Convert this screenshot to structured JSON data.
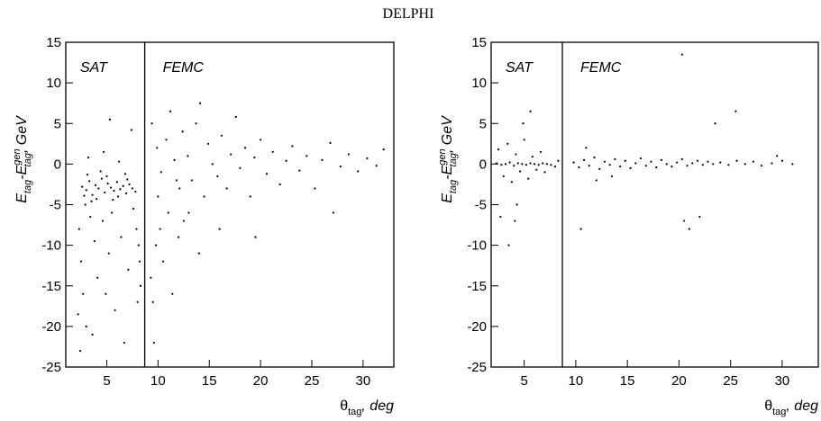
{
  "title": "DELPHI",
  "chart_data": [
    {
      "type": "scatter",
      "annotations": [
        "SAT",
        "FEMC"
      ],
      "boundary": 8.7,
      "xlabel": [
        "θ",
        "tag",
        ", deg"
      ],
      "ylabel": [
        "E",
        "tag",
        "-E",
        "gen",
        "tag",
        ", GeV"
      ],
      "xlim": [
        1,
        33
      ],
      "xticks": [
        5,
        10,
        15,
        20,
        25,
        30
      ],
      "ylim": [
        -25,
        15
      ],
      "yticks": [
        -25,
        -20,
        -15,
        -10,
        -5,
        0,
        5,
        10,
        15
      ],
      "color": "#000000",
      "x": [
        2.6,
        3.0,
        3.3,
        3.6,
        3.9,
        4.2,
        4.5,
        4.8,
        5.1,
        5.4,
        5.7,
        6.0,
        6.3,
        6.6,
        6.9,
        7.2,
        7.5,
        7.8,
        3.1,
        4.0,
        5.0,
        6.1,
        7.0,
        3.5,
        5.6,
        4.4,
        6.8,
        2.8,
        2.3,
        2.5,
        2.7,
        3.0,
        2.4,
        3.4,
        3.8,
        4.1,
        4.6,
        5.2,
        5.8,
        6.4,
        7.1,
        7.6,
        7.9,
        8.1,
        8.2,
        8.3,
        8.0,
        2.2,
        3.6,
        4.9,
        6.7,
        2.9,
        5.5,
        3.2,
        4.7,
        6.2,
        7.4,
        5.3,
        9.3,
        9.5,
        9.8,
        9.6,
        10.2,
        10.5,
        11.0,
        11.4,
        12.0,
        12.5,
        9.4,
        9.9,
        10.3,
        10.8,
        11.2,
        11.6,
        12.1,
        12.4,
        12.9,
        13.3,
        13.7,
        14.1,
        14.5,
        14.9,
        15.3,
        15.8,
        16.2,
        16.7,
        17.1,
        17.6,
        18.0,
        18.5,
        19.0,
        19.4,
        20.0,
        20.6,
        21.2,
        21.9,
        22.5,
        23.1,
        23.8,
        24.5,
        25.3,
        26.0,
        26.8,
        27.1,
        27.8,
        28.6,
        29.5,
        30.4,
        31.3,
        32.0,
        10.0,
        11.8,
        13.0,
        14.0,
        16.0,
        19.5
      ],
      "y": [
        -2.8,
        -3.2,
        -2.1,
        -3.8,
        -2.6,
        -3.0,
        -1.8,
        -3.5,
        -2.4,
        -2.9,
        -3.3,
        -2.2,
        -3.1,
        -2.7,
        -3.6,
        -2.5,
        -3.0,
        -3.4,
        -1.3,
        -4.3,
        -1.5,
        -4.0,
        -1.9,
        -4.6,
        -4.4,
        -0.9,
        -1.2,
        -3.9,
        -8,
        -12,
        -16,
        -20,
        -23,
        -6.5,
        -9.5,
        -14,
        -7,
        -11,
        -18,
        -9,
        -13,
        -5.5,
        -8,
        -10,
        -12,
        -15,
        -17,
        -18.5,
        -21,
        -16,
        -22,
        -5,
        -6,
        0.8,
        1.5,
        0.3,
        4.2,
        5.5,
        -14,
        -17,
        -10,
        -22,
        -8,
        -12,
        -6,
        -16,
        -9,
        -7,
        5,
        2,
        -1,
        3,
        6.5,
        0.5,
        -3,
        4,
        1,
        -2,
        5,
        7.5,
        -4,
        2.5,
        0,
        -1.5,
        3.5,
        -3,
        1.2,
        5.8,
        -0.5,
        2,
        -4,
        0.8,
        3,
        -1.2,
        1.5,
        -2.5,
        0.4,
        2.2,
        -0.8,
        1,
        -3,
        0.5,
        2.6,
        -6,
        -0.3,
        1.2,
        -0.9,
        0.7,
        -0.2,
        1.8,
        -4,
        -2,
        -6,
        -11,
        -8,
        -9
      ]
    },
    {
      "type": "scatter",
      "annotations": [
        "SAT",
        "FEMC"
      ],
      "boundary": 8.7,
      "xlabel": [
        "θ",
        "tag",
        ", deg"
      ],
      "ylabel": [
        "E",
        "tag",
        "-E",
        "gen",
        "tag",
        ", GeV"
      ],
      "xlim": [
        1.8,
        33.5
      ],
      "xticks": [
        5,
        10,
        15,
        20,
        25,
        30
      ],
      "ylim": [
        -25,
        15
      ],
      "yticks": [
        -25,
        -20,
        -15,
        -10,
        -5,
        0,
        5,
        10,
        15
      ],
      "color": "#000000",
      "x": [
        2.3,
        2.8,
        3.2,
        3.6,
        4.0,
        4.4,
        4.8,
        5.2,
        5.6,
        6.0,
        6.4,
        6.8,
        7.2,
        7.6,
        2.5,
        3.0,
        3.4,
        3.8,
        4.2,
        4.6,
        5.0,
        5.4,
        5.8,
        6.2,
        6.6,
        7.0,
        2.7,
        3.5,
        4.1,
        4.3,
        5.6,
        4.9,
        8.0,
        8.3,
        9.8,
        10.3,
        10.8,
        11.3,
        11.8,
        12.3,
        12.8,
        13.3,
        13.8,
        14.3,
        14.8,
        15.3,
        15.8,
        16.3,
        16.8,
        17.3,
        17.8,
        18.3,
        18.8,
        19.3,
        19.8,
        20.3,
        20.8,
        21.3,
        21.8,
        22.3,
        22.8,
        23.3,
        24.0,
        24.8,
        25.6,
        26.4,
        27.2,
        28.0,
        29.0,
        30.0,
        31.0,
        10.5,
        11.0,
        12.0,
        13.5,
        20.5,
        21.0,
        22.0,
        25.5,
        29.5,
        20.3,
        23.5
      ],
      "y": [
        0.1,
        -0.1,
        0.0,
        0.2,
        -0.2,
        0.1,
        0.0,
        -0.1,
        0.1,
        0.0,
        -0.1,
        0.1,
        0.0,
        -0.1,
        1.8,
        -1.5,
        2.5,
        -2.2,
        1.2,
        -0.9,
        3.0,
        -1.8,
        0.9,
        -0.7,
        1.5,
        -1.0,
        -6.5,
        -10,
        -7,
        -5,
        6.5,
        5,
        -0.3,
        0.4,
        0.2,
        -0.4,
        0.5,
        -0.2,
        0.8,
        -0.6,
        0.3,
        -0.1,
        0.6,
        -0.3,
        0.4,
        -0.5,
        0.1,
        0.7,
        -0.2,
        0.3,
        -0.4,
        0.5,
        0.0,
        -0.3,
        0.2,
        0.6,
        -0.2,
        0.1,
        0.4,
        -0.1,
        0.3,
        0.0,
        0.2,
        -0.1,
        0.4,
        0.0,
        0.3,
        -0.2,
        0.1,
        0.4,
        0.0,
        -8,
        2,
        -2,
        -1.5,
        -7,
        -8,
        -6.5,
        6.5,
        1,
        13.5,
        5
      ]
    }
  ]
}
